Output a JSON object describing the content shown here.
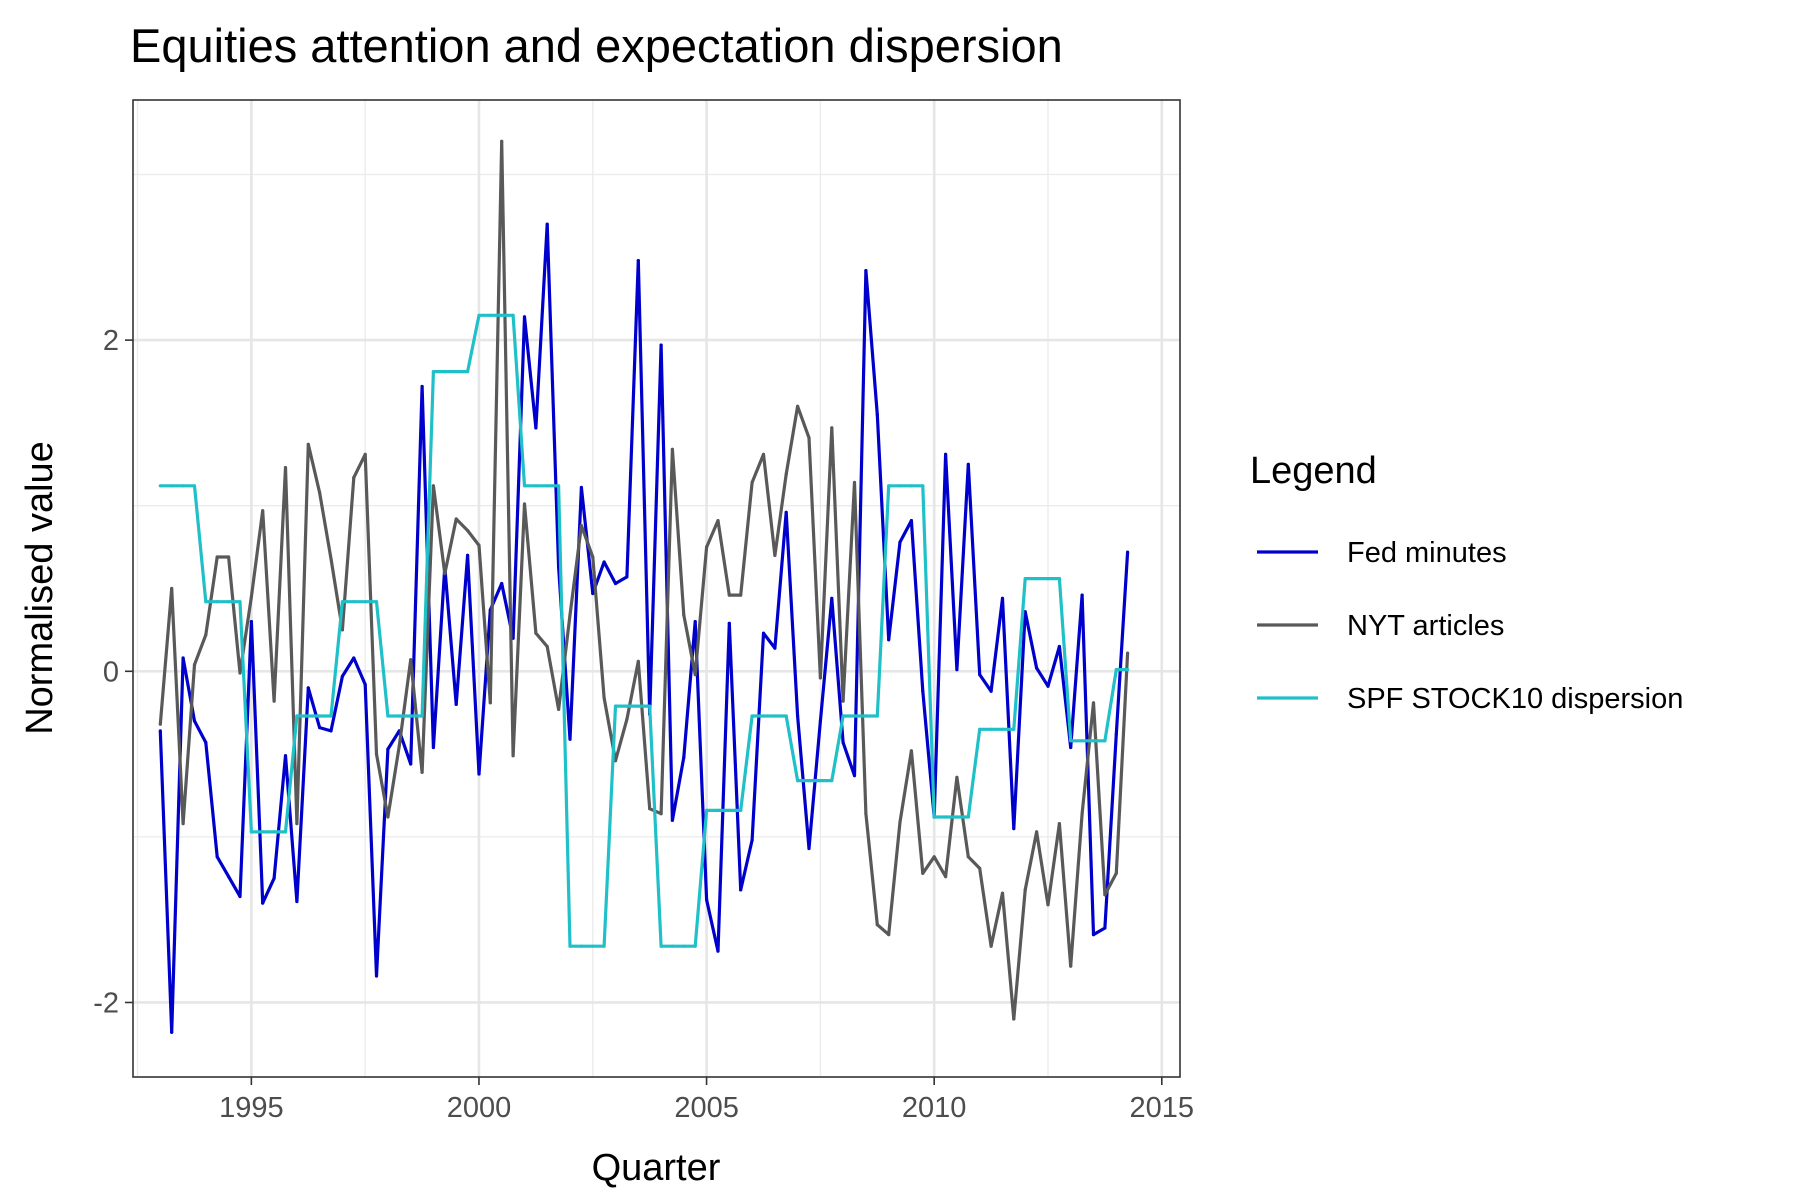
{
  "chart_data": {
    "type": "line",
    "title": "Equities attention and expectation dispersion",
    "xlabel": "Quarter",
    "ylabel": "Normalised value",
    "xlim": [
      1992.4,
      2015.4
    ],
    "ylim": [
      -2.45,
      3.45
    ],
    "x_ticks": [
      {
        "value": 1995,
        "label": "1995"
      },
      {
        "value": 2000,
        "label": "2000"
      },
      {
        "value": 2005,
        "label": "2005"
      },
      {
        "value": 2010,
        "label": "2010"
      },
      {
        "value": 2015,
        "label": "2015"
      }
    ],
    "y_ticks": [
      {
        "value": -2,
        "label": "-2"
      },
      {
        "value": 0,
        "label": "0"
      },
      {
        "value": 2,
        "label": "2"
      }
    ],
    "grid": true,
    "legend": {
      "title": "Legend",
      "position": "right"
    },
    "x_start": 1993.0,
    "x_step": 0.25,
    "series": [
      {
        "name": "Fed minutes",
        "color": "#0000cd",
        "values": [
          -0.36,
          -2.18,
          0.08,
          -0.3,
          -0.43,
          -1.12,
          -1.24,
          -1.36,
          0.3,
          -1.4,
          -1.25,
          -0.51,
          -1.39,
          -0.1,
          -0.34,
          -0.36,
          -0.03,
          0.08,
          -0.08,
          -1.84,
          -0.47,
          -0.36,
          -0.56,
          1.72,
          -0.46,
          0.63,
          -0.2,
          0.7,
          -0.62,
          0.37,
          0.53,
          0.2,
          2.14,
          1.47,
          2.7,
          0.63,
          -0.41,
          1.11,
          0.47,
          0.66,
          0.53,
          0.57,
          2.48,
          -0.26,
          1.97,
          -0.9,
          -0.52,
          0.3,
          -1.38,
          -1.69,
          0.29,
          -1.32,
          -1.02,
          0.23,
          0.14,
          0.96,
          -0.27,
          -1.07,
          -0.3,
          0.44,
          -0.43,
          -0.63,
          2.42,
          1.55,
          0.19,
          0.78,
          0.91,
          -0.12,
          -0.88,
          1.31,
          0.01,
          1.25,
          -0.02,
          -0.12,
          0.44,
          -0.95,
          0.36,
          0.02,
          -0.09,
          0.15,
          -0.46,
          0.46,
          -1.59,
          -1.55,
          -0.38,
          0.72
        ]
      },
      {
        "name": "NYT articles",
        "color": "#595959",
        "values": [
          -0.32,
          0.5,
          -0.92,
          0.04,
          0.22,
          0.69,
          0.69,
          -0.01,
          0.45,
          0.97,
          -0.18,
          1.23,
          -0.92,
          1.37,
          1.08,
          0.68,
          0.25,
          1.17,
          1.31,
          -0.5,
          -0.88,
          -0.45,
          0.07,
          -0.61,
          1.12,
          0.59,
          0.92,
          0.85,
          0.76,
          -0.19,
          3.2,
          -0.51,
          1.01,
          0.23,
          0.15,
          -0.23,
          0.34,
          0.88,
          0.69,
          -0.16,
          -0.54,
          -0.29,
          0.06,
          -0.83,
          -0.86,
          1.34,
          0.34,
          -0.02,
          0.75,
          0.91,
          0.46,
          0.46,
          1.14,
          1.31,
          0.7,
          1.19,
          1.6,
          1.41,
          -0.04,
          1.47,
          -0.18,
          1.14,
          -0.86,
          -1.53,
          -1.59,
          -0.91,
          -0.48,
          -1.22,
          -1.12,
          -1.24,
          -0.64,
          -1.12,
          -1.19,
          -1.66,
          -1.34,
          -2.1,
          -1.32,
          -0.97,
          -1.41,
          -0.92,
          -1.78,
          -0.86,
          -0.19,
          -1.35,
          -1.22,
          0.11
        ]
      },
      {
        "name": "SPF STOCK10 dispersion",
        "color": "#20c0c8",
        "values": [
          1.12,
          1.12,
          1.12,
          1.12,
          0.42,
          0.42,
          0.42,
          0.42,
          -0.97,
          -0.97,
          -0.97,
          -0.97,
          -0.27,
          -0.27,
          -0.27,
          -0.27,
          0.42,
          0.42,
          0.42,
          0.42,
          -0.27,
          -0.27,
          -0.27,
          -0.27,
          1.81,
          1.81,
          1.81,
          1.81,
          2.15,
          2.15,
          2.15,
          2.15,
          1.12,
          1.12,
          1.12,
          1.12,
          -1.66,
          -1.66,
          -1.66,
          -1.66,
          -0.21,
          -0.21,
          -0.21,
          -0.21,
          -1.66,
          -1.66,
          -1.66,
          -1.66,
          -0.84,
          -0.84,
          -0.84,
          -0.84,
          -0.27,
          -0.27,
          -0.27,
          -0.27,
          -0.66,
          -0.66,
          -0.66,
          -0.66,
          -0.27,
          -0.27,
          -0.27,
          -0.27,
          1.12,
          1.12,
          1.12,
          1.12,
          -0.88,
          -0.88,
          -0.88,
          -0.88,
          -0.35,
          -0.35,
          -0.35,
          -0.35,
          0.56,
          0.56,
          0.56,
          0.56,
          -0.42,
          -0.42,
          -0.42,
          -0.42,
          0.01,
          0.01
        ]
      }
    ]
  }
}
